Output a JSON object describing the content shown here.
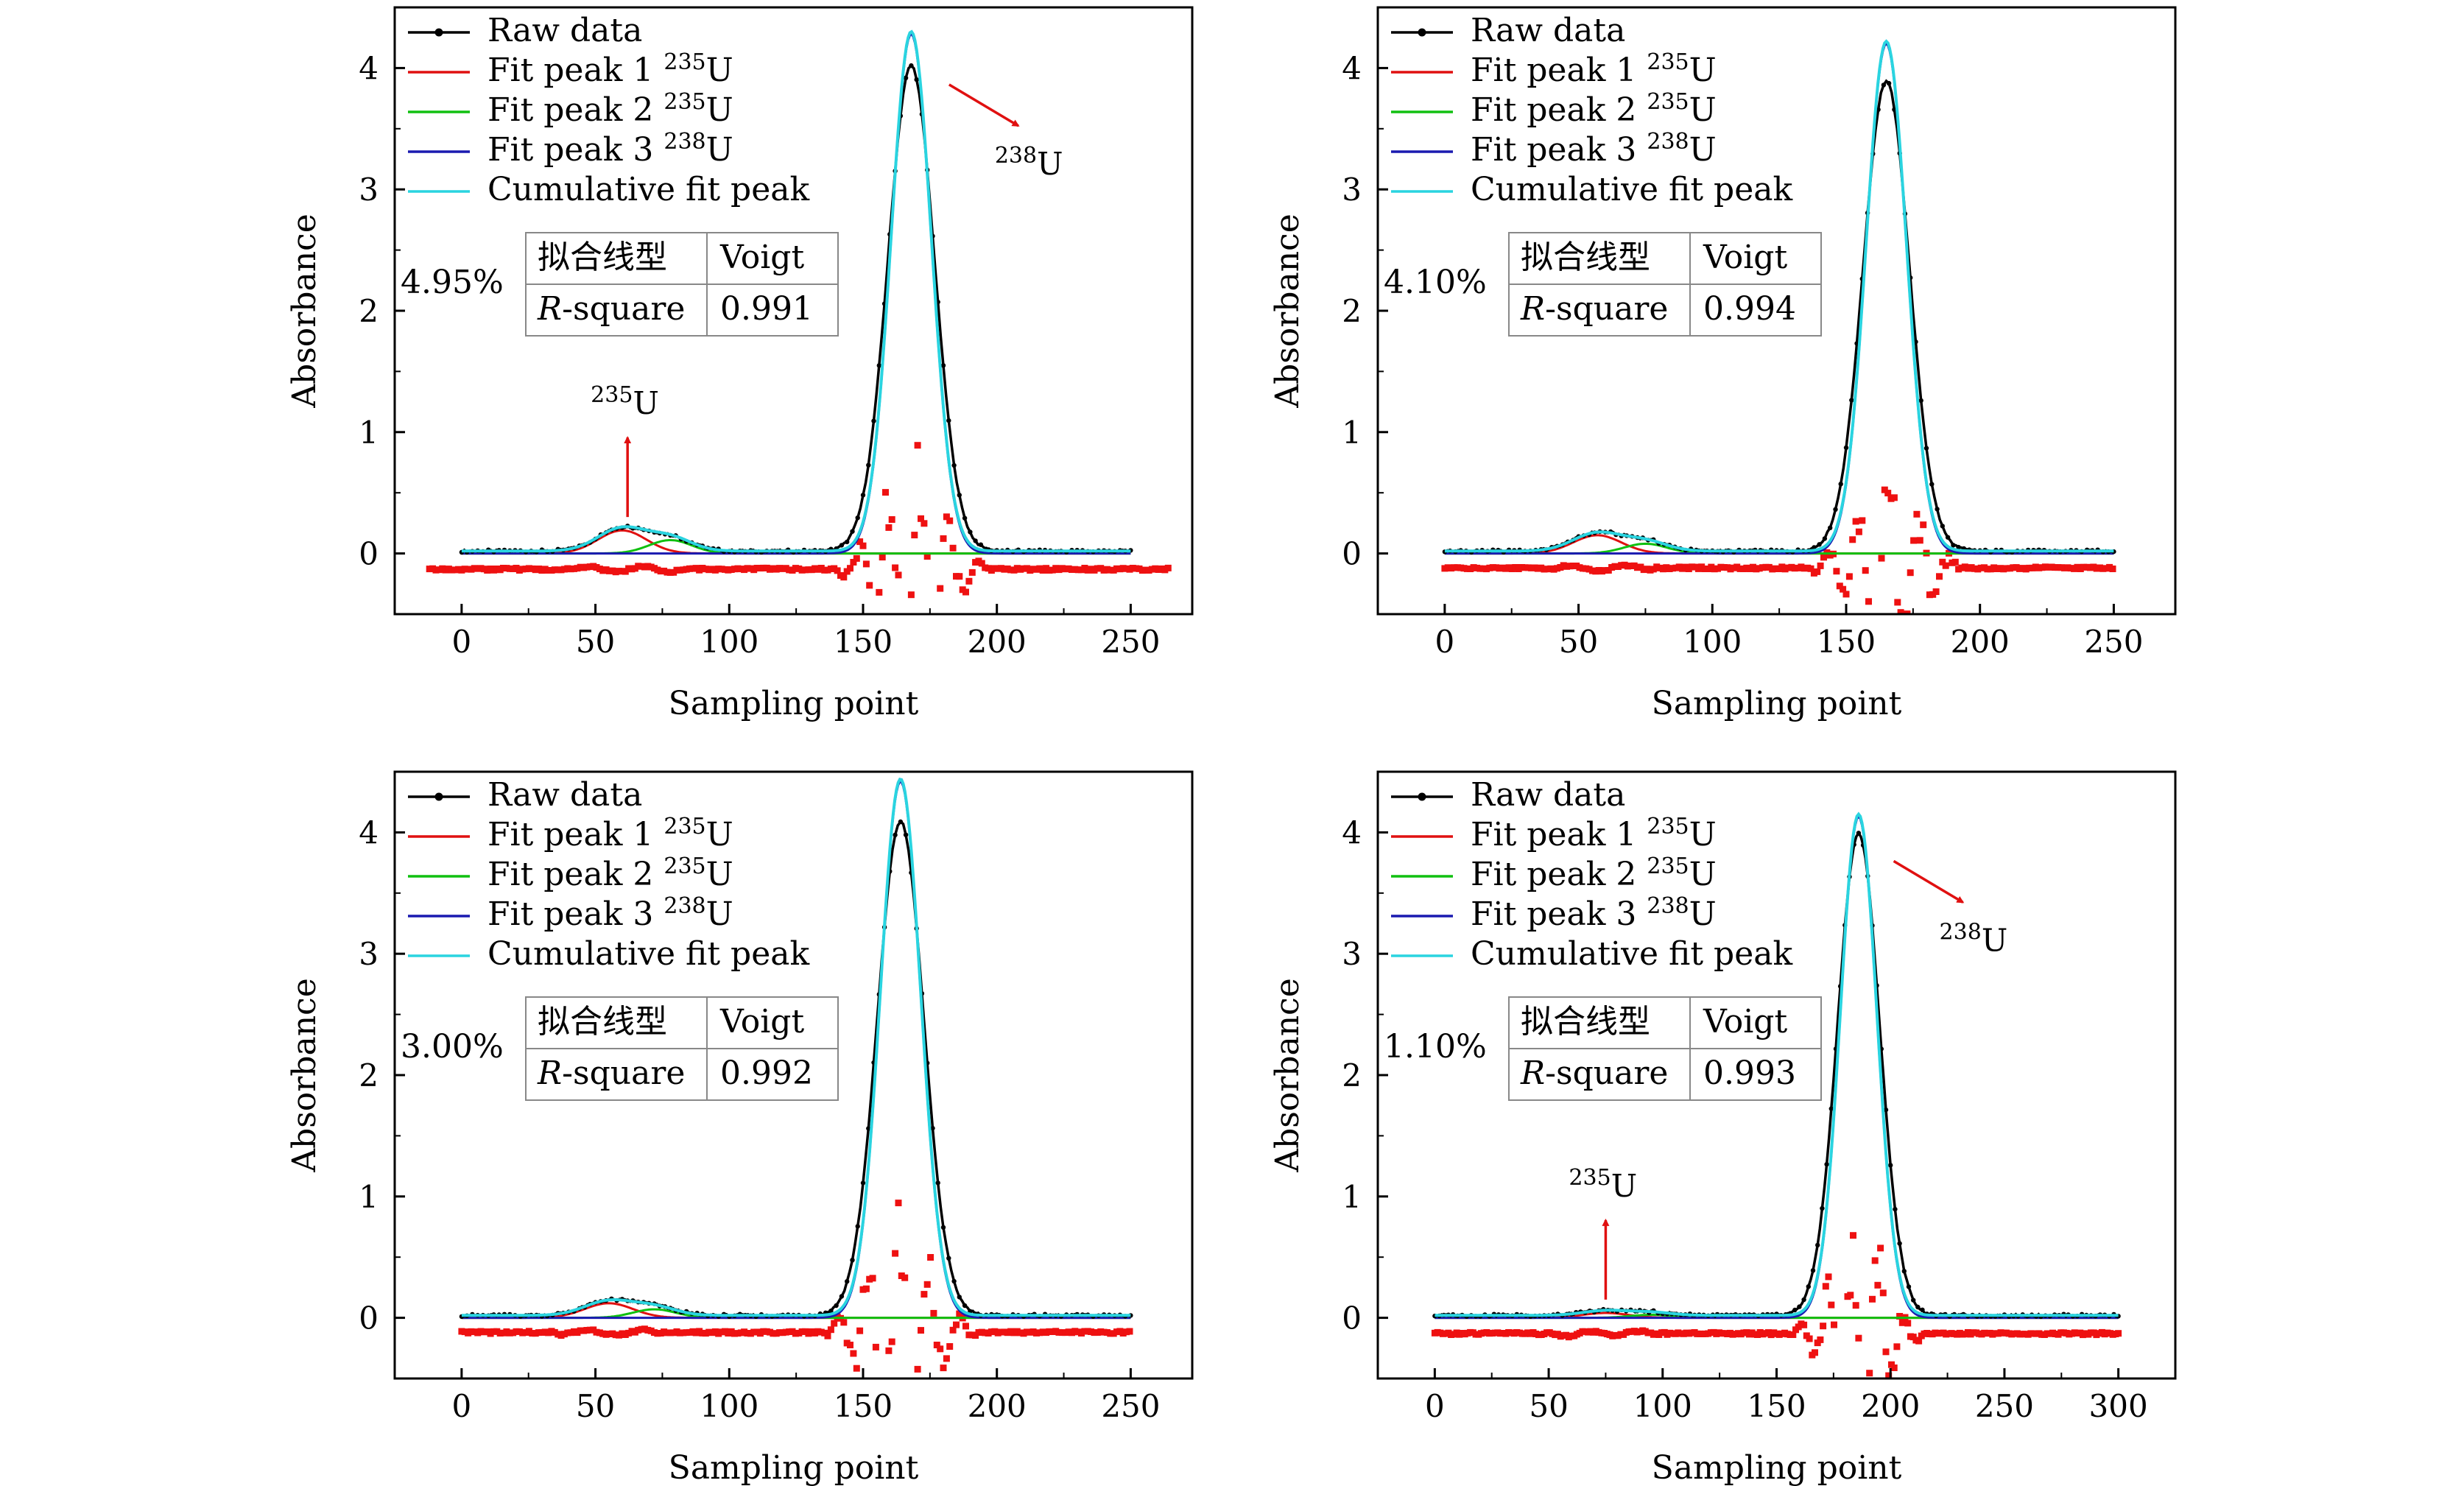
{
  "chart_data": [
    {
      "type": "line",
      "panel": "top-left",
      "xlabel": "Sampling point",
      "ylabel": "Absorbance",
      "xlim": [
        -25,
        273
      ],
      "ylim": [
        -0.5,
        4.5
      ],
      "xticks": [
        0,
        50,
        100,
        150,
        200,
        250
      ],
      "yticks": [
        0,
        1,
        2,
        3,
        4
      ],
      "legend": {
        "raw": "Raw data",
        "fit1": "Fit peak 1",
        "fit1_iso": "235",
        "fit1_u": "U",
        "fit2": "Fit peak 2",
        "fit2_iso": "235",
        "fit2_u": "U",
        "fit3": "Fit peak 3",
        "fit3_iso": "238",
        "fit3_u": "U",
        "cum": "Cumulative fit peak"
      },
      "label": "4.95%",
      "table": {
        "fit_type_label": "拟合线型",
        "fit_type": "Voigt",
        "r_label_italic": "R",
        "r_label_rest": "-square",
        "r_value": "0.991"
      },
      "annotations": [
        {
          "iso": "235",
          "u": "U",
          "role": "235U peak arrow",
          "x": 62,
          "y": 0.3,
          "dir": "up"
        },
        {
          "iso": "238",
          "u": "U",
          "role": "238U peak arrow",
          "x": 175,
          "y": 3.9,
          "dir": "down-right"
        }
      ],
      "x_range": [
        0,
        250
      ],
      "peaks": [
        {
          "series": "Fit peak 1 235U",
          "center": 60,
          "amplitude": 0.19,
          "width": 9
        },
        {
          "series": "Fit peak 2 235U",
          "center": 78,
          "amplitude": 0.11,
          "width": 8
        },
        {
          "series": "Fit peak 3 238U",
          "center": 168,
          "amplitude": 4.28,
          "width": 7.5
        }
      ],
      "raw_peak_max": 4.08,
      "baseline": 0.02,
      "residual_offset": -0.13,
      "residual_range": [
        -12,
        265
      ]
    },
    {
      "type": "line",
      "panel": "top-right",
      "xlabel": "Sampling point",
      "ylabel": "Absorbance",
      "xlim": [
        -25,
        273
      ],
      "ylim": [
        -0.5,
        4.5
      ],
      "xticks": [
        0,
        50,
        100,
        150,
        200,
        250
      ],
      "yticks": [
        0,
        1,
        2,
        3,
        4
      ],
      "legend": {
        "raw": "Raw data",
        "fit1": "Fit peak 1",
        "fit1_iso": "235",
        "fit1_u": "U",
        "fit2": "Fit peak 2",
        "fit2_iso": "235",
        "fit2_u": "U",
        "fit3": "Fit peak 3",
        "fit3_iso": "238",
        "fit3_u": "U",
        "cum": "Cumulative fit peak"
      },
      "label": "4.10%",
      "table": {
        "fit_type_label": "拟合线型",
        "fit_type": "Voigt",
        "r_label_italic": "R",
        "r_label_rest": "-square",
        "r_value": "0.994"
      },
      "annotations": [],
      "x_range": [
        0,
        250
      ],
      "peaks": [
        {
          "series": "Fit peak 1 235U",
          "center": 57,
          "amplitude": 0.15,
          "width": 9
        },
        {
          "series": "Fit peak 2 235U",
          "center": 75,
          "amplitude": 0.08,
          "width": 8
        },
        {
          "series": "Fit peak 3 238U",
          "center": 165,
          "amplitude": 4.2,
          "width": 7.5
        }
      ],
      "raw_peak_max": 3.95,
      "baseline": 0.02,
      "residual_offset": -0.12,
      "residual_range": [
        0,
        250
      ]
    },
    {
      "type": "line",
      "panel": "bottom-left",
      "xlabel": "Sampling point",
      "ylabel": "Absorbance",
      "xlim": [
        -25,
        273
      ],
      "ylim": [
        -0.5,
        4.5
      ],
      "xticks": [
        0,
        50,
        100,
        150,
        200,
        250
      ],
      "yticks": [
        0,
        1,
        2,
        3,
        4
      ],
      "legend": {
        "raw": "Raw data",
        "fit1": "Fit peak 1",
        "fit1_iso": "235",
        "fit1_u": "U",
        "fit2": "Fit peak 2",
        "fit2_iso": "235",
        "fit2_u": "U",
        "fit3": "Fit peak 3",
        "fit3_iso": "238",
        "fit3_u": "U",
        "cum": "Cumulative fit peak"
      },
      "label": "3.00%",
      "table": {
        "fit_type_label": "拟合线型",
        "fit_type": "Voigt",
        "r_label_italic": "R",
        "r_label_rest": "-square",
        "r_value": "0.992"
      },
      "annotations": [],
      "x_range": [
        0,
        250
      ],
      "peaks": [
        {
          "series": "Fit peak 1 235U",
          "center": 55,
          "amplitude": 0.12,
          "width": 9
        },
        {
          "series": "Fit peak 2 235U",
          "center": 72,
          "amplitude": 0.07,
          "width": 8
        },
        {
          "series": "Fit peak 3 238U",
          "center": 164,
          "amplitude": 4.42,
          "width": 7.5
        }
      ],
      "raw_peak_max": 4.15,
      "baseline": 0.02,
      "residual_offset": -0.12,
      "residual_range": [
        0,
        250
      ]
    },
    {
      "type": "line",
      "panel": "bottom-right",
      "xlabel": "Sampling point",
      "ylabel": "Absorbance",
      "xlim": [
        -25,
        325
      ],
      "ylim": [
        -0.5,
        4.5
      ],
      "xticks": [
        0,
        50,
        100,
        150,
        200,
        250,
        300
      ],
      "yticks": [
        0,
        1,
        2,
        3,
        4
      ],
      "legend": {
        "raw": "Raw data",
        "fit1": "Fit peak 1",
        "fit1_iso": "235",
        "fit1_u": "U",
        "fit2": "Fit peak 2",
        "fit2_iso": "235",
        "fit2_u": "U",
        "fit3": "Fit peak 3",
        "fit3_iso": "238",
        "fit3_u": "U",
        "cum": "Cumulative fit peak"
      },
      "label": "1.10%",
      "table": {
        "fit_type_label": "拟合线型",
        "fit_type": "Voigt",
        "r_label_italic": "R",
        "r_label_rest": "-square",
        "r_value": "0.993"
      },
      "annotations": [
        {
          "iso": "235",
          "u": "U",
          "role": "235U peak arrow",
          "x": 75,
          "y": 0.15,
          "dir": "up"
        },
        {
          "iso": "238",
          "u": "U",
          "role": "238U peak arrow",
          "x": 193,
          "y": 3.8,
          "dir": "down-right"
        }
      ],
      "x_range": [
        0,
        300
      ],
      "peaks": [
        {
          "series": "Fit peak 1 235U",
          "center": 75,
          "amplitude": 0.04,
          "width": 10
        },
        {
          "series": "Fit peak 2 235U",
          "center": 95,
          "amplitude": 0.025,
          "width": 9
        },
        {
          "series": "Fit peak 3 238U",
          "center": 186,
          "amplitude": 4.13,
          "width": 8
        }
      ],
      "raw_peak_max": 4.05,
      "baseline": 0.02,
      "residual_offset": -0.13,
      "residual_range": [
        0,
        300
      ]
    }
  ],
  "colors": {
    "raw": "#000000",
    "fit1": "#e01010",
    "fit2": "#10c010",
    "fit3": "#1a1ab0",
    "cum": "#2ad4e0",
    "residual": "#ee1111",
    "arrow": "#e01010"
  }
}
